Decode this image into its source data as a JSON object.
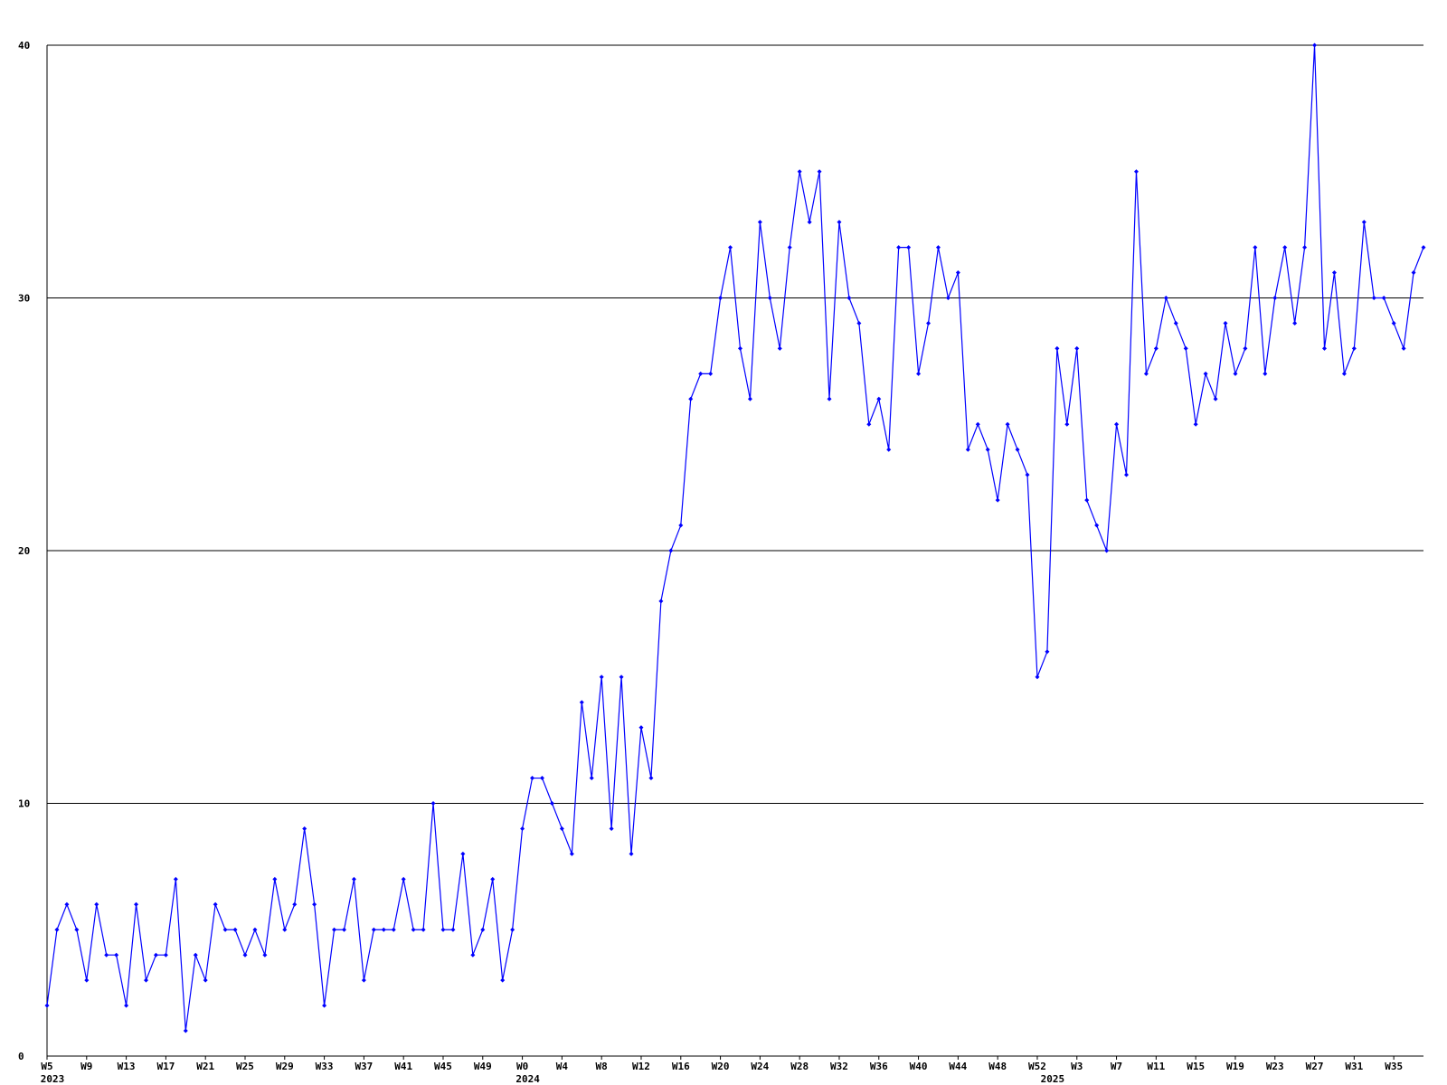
{
  "chart_data": {
    "type": "line",
    "categories": [
      "W5",
      null,
      null,
      null,
      "W9",
      null,
      null,
      null,
      "W13",
      null,
      null,
      null,
      "W17",
      null,
      null,
      null,
      "W21",
      null,
      null,
      null,
      "W25",
      null,
      null,
      null,
      "W29",
      null,
      null,
      null,
      "W33",
      null,
      null,
      null,
      "W37",
      null,
      null,
      null,
      "W41",
      null,
      null,
      null,
      "W45",
      null,
      null,
      null,
      "W49",
      null,
      null,
      null,
      "W0",
      null,
      null,
      null,
      "W4",
      null,
      null,
      null,
      "W8",
      null,
      null,
      null,
      "W12",
      null,
      null,
      null,
      "W16",
      null,
      null,
      null,
      "W20",
      null,
      null,
      null,
      "W24",
      null,
      null,
      null,
      "W28",
      null,
      null,
      null,
      "W32",
      null,
      null,
      null,
      "W36",
      null,
      null,
      null,
      "W40",
      null,
      null,
      null,
      "W44",
      null,
      null,
      null,
      "W48",
      null,
      null,
      null,
      "W52",
      null,
      null,
      null,
      "W3",
      null,
      null,
      null,
      "W7",
      null,
      null,
      null,
      "W11",
      null,
      null,
      null,
      "W15",
      null,
      null,
      null,
      "W19",
      null,
      null,
      null,
      "W23",
      null,
      null,
      null,
      "W27",
      null,
      null,
      null,
      "W31",
      null,
      null,
      null,
      "W35",
      null,
      null,
      null
    ],
    "year_labels": [
      "2023",
      null,
      null,
      null,
      null,
      null,
      null,
      null,
      null,
      null,
      null,
      null,
      null,
      null,
      null,
      null,
      null,
      null,
      null,
      null,
      null,
      null,
      null,
      null,
      null,
      null,
      null,
      null,
      null,
      null,
      null,
      null,
      null,
      null,
      null,
      null,
      null,
      null,
      null,
      null,
      null,
      null,
      null,
      null,
      null,
      null,
      null,
      null,
      "2024",
      null,
      null,
      null,
      null,
      null,
      null,
      null,
      null,
      null,
      null,
      null,
      null,
      null,
      null,
      null,
      null,
      null,
      null,
      null,
      null,
      null,
      null,
      null,
      null,
      null,
      null,
      null,
      null,
      null,
      null,
      null,
      null,
      null,
      null,
      null,
      null,
      null,
      null,
      null,
      null,
      null,
      null,
      null,
      null,
      null,
      null,
      null,
      null,
      null,
      null,
      null,
      null,
      "2025",
      null,
      null,
      null,
      null,
      null,
      null,
      null,
      null,
      null,
      null,
      null,
      null,
      null,
      null,
      null,
      null,
      null,
      null,
      null,
      null,
      null,
      null,
      null,
      null,
      null,
      null,
      null,
      null,
      null,
      null,
      null,
      null,
      null,
      null,
      null,
      null,
      null,
      null
    ],
    "series": [
      {
        "color": "#0000ff",
        "values": [
          2,
          5,
          6,
          5,
          3,
          6,
          4,
          4,
          2,
          6,
          3,
          4,
          4,
          7,
          1,
          4,
          3,
          6,
          5,
          5,
          4,
          5,
          4,
          7,
          5,
          6,
          9,
          6,
          2,
          5,
          5,
          7,
          3,
          5,
          5,
          5,
          7,
          5,
          5,
          10,
          5,
          5,
          8,
          4,
          5,
          7,
          3,
          5,
          9,
          11,
          11,
          10,
          9,
          8,
          14,
          11,
          15,
          9,
          15,
          8,
          13,
          11,
          18,
          20,
          21,
          26,
          27,
          27,
          30,
          32,
          28,
          26,
          33,
          30,
          28,
          32,
          35,
          33,
          35,
          26,
          33,
          30,
          29,
          25,
          26,
          24,
          32,
          32,
          27,
          29,
          32,
          30,
          31,
          24,
          25,
          24,
          22,
          25,
          24,
          23,
          15,
          16,
          28,
          25,
          28,
          22,
          21,
          20,
          25,
          23,
          35,
          27,
          28,
          30,
          29,
          28,
          25,
          27,
          26,
          29,
          27,
          28,
          32,
          27,
          30,
          32,
          29,
          32,
          40,
          28,
          31,
          27,
          28,
          33,
          30,
          30,
          29,
          28,
          31,
          32
        ]
      }
    ],
    "ylim": [
      0,
      40
    ],
    "yticks": [
      0,
      10,
      20,
      30,
      40
    ],
    "grid": true,
    "gridcolor": "#000000"
  }
}
